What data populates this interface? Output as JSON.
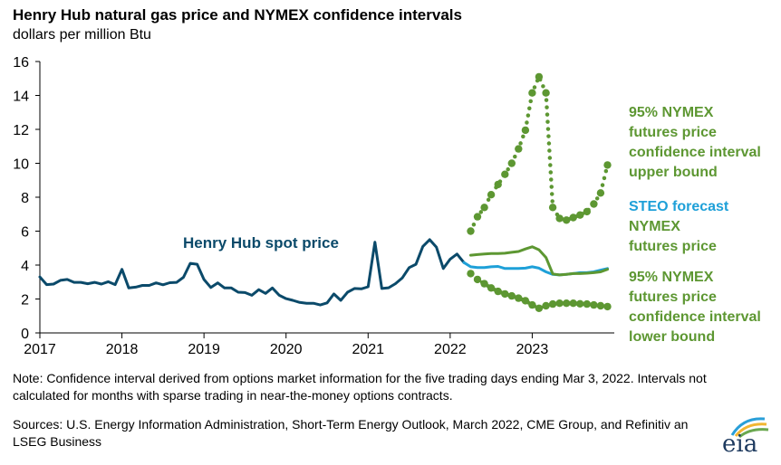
{
  "title": "Henry Hub natural gas price and NYMEX confidence intervals",
  "subtitle": "dollars per million Btu",
  "colors": {
    "spot": "#0b4a6a",
    "steo": "#1ea0d8",
    "futures": "#5d9732",
    "upper": "#5d9732",
    "lower": "#5d9732",
    "axis": "#000000"
  },
  "annotations": {
    "spot": "Henry Hub spot price",
    "upper": [
      "95% NYMEX",
      "futures price",
      "confidence interval",
      "upper bound"
    ],
    "steo": [
      "STEO forecast",
      "NYMEX",
      "futures price"
    ],
    "lower": [
      "95% NYMEX",
      "futures price",
      "confidence interval",
      "lower bound"
    ]
  },
  "note": "Note: Confidence interval derived from options market information for the five trading days ending Mar 3, 2022. Intervals not calculated for months with sparse trading in near-the-money options contracts.",
  "sources": "Sources: U.S. Energy Information Administration, Short-Term Energy Outlook, March 2022, CME Group, and Refinitiv an LSEG Business",
  "logo": "eia",
  "chart_data": {
    "type": "line",
    "title": "Henry Hub natural gas price and NYMEX confidence intervals",
    "ylabel": "dollars per million Btu",
    "xlabel": "",
    "xlim": [
      2017.0,
      2024.0
    ],
    "ylim": [
      0,
      16
    ],
    "yticks": [
      0,
      2,
      4,
      6,
      8,
      10,
      12,
      14,
      16
    ],
    "xticks": [
      2017,
      2018,
      2019,
      2020,
      2021,
      2022,
      2023
    ],
    "grid": false,
    "series": [
      {
        "name": "Henry Hub spot price",
        "style": "solid",
        "color": "#0b4a6a",
        "x": [
          2017.0,
          2017.083,
          2017.167,
          2017.25,
          2017.333,
          2017.417,
          2017.5,
          2017.583,
          2017.667,
          2017.75,
          2017.833,
          2017.917,
          2018.0,
          2018.083,
          2018.167,
          2018.25,
          2018.333,
          2018.417,
          2018.5,
          2018.583,
          2018.667,
          2018.75,
          2018.833,
          2018.917,
          2019.0,
          2019.083,
          2019.167,
          2019.25,
          2019.333,
          2019.417,
          2019.5,
          2019.583,
          2019.667,
          2019.75,
          2019.833,
          2019.917,
          2020.0,
          2020.083,
          2020.167,
          2020.25,
          2020.333,
          2020.417,
          2020.5,
          2020.583,
          2020.667,
          2020.75,
          2020.833,
          2020.917,
          2021.0,
          2021.083,
          2021.167,
          2021.25,
          2021.333,
          2021.417,
          2021.5,
          2021.583,
          2021.667,
          2021.75,
          2021.833,
          2021.917,
          2022.0,
          2022.083,
          2022.167
        ],
        "values": [
          3.3,
          2.85,
          2.88,
          3.1,
          3.15,
          2.98,
          2.98,
          2.9,
          2.98,
          2.88,
          3.02,
          2.85,
          3.75,
          2.65,
          2.7,
          2.8,
          2.8,
          2.95,
          2.84,
          2.96,
          2.98,
          3.28,
          4.1,
          4.05,
          3.15,
          2.68,
          2.95,
          2.65,
          2.65,
          2.4,
          2.38,
          2.22,
          2.55,
          2.33,
          2.65,
          2.22,
          2.02,
          1.92,
          1.8,
          1.75,
          1.75,
          1.65,
          1.77,
          2.3,
          1.92,
          2.4,
          2.62,
          2.6,
          2.72,
          5.35,
          2.62,
          2.66,
          2.9,
          3.25,
          3.85,
          4.05,
          5.1,
          5.5,
          5.05,
          3.8,
          4.35,
          4.65,
          4.15
        ]
      },
      {
        "name": "STEO forecast",
        "style": "solid",
        "color": "#1ea0d8",
        "x": [
          2022.167,
          2022.25,
          2022.333,
          2022.417,
          2022.5,
          2022.583,
          2022.667,
          2022.75,
          2022.833,
          2022.917,
          2023.0,
          2023.083,
          2023.167,
          2023.25,
          2023.333,
          2023.417,
          2023.5,
          2023.583,
          2023.667,
          2023.75,
          2023.833,
          2023.917
        ],
        "values": [
          4.15,
          3.9,
          3.85,
          3.85,
          3.9,
          3.92,
          3.8,
          3.8,
          3.8,
          3.82,
          3.9,
          3.82,
          3.6,
          3.45,
          3.42,
          3.45,
          3.5,
          3.55,
          3.55,
          3.6,
          3.7,
          3.8
        ]
      },
      {
        "name": "NYMEX futures price",
        "style": "solid",
        "color": "#5d9732",
        "x": [
          2022.25,
          2022.333,
          2022.417,
          2022.5,
          2022.583,
          2022.667,
          2022.75,
          2022.833,
          2022.917,
          2023.0,
          2023.083,
          2023.167,
          2023.25,
          2023.333,
          2023.417,
          2023.5,
          2023.583,
          2023.667,
          2023.75,
          2023.833,
          2023.917
        ],
        "values": [
          4.58,
          4.62,
          4.65,
          4.68,
          4.68,
          4.7,
          4.75,
          4.8,
          4.95,
          5.08,
          4.9,
          4.45,
          3.48,
          3.42,
          3.45,
          3.5,
          3.5,
          3.52,
          3.55,
          3.6,
          3.75
        ]
      },
      {
        "name": "95% NYMEX futures price confidence interval upper bound",
        "style": "dotted",
        "color": "#5d9732",
        "x": [
          2022.25,
          2022.333,
          2022.417,
          2022.5,
          2022.583,
          2022.667,
          2022.75,
          2022.833,
          2022.917,
          2023.0,
          2023.083,
          2023.167,
          2023.25,
          2023.333,
          2023.417,
          2023.5,
          2023.583,
          2023.667,
          2023.75,
          2023.833,
          2023.917
        ],
        "values": [
          6.0,
          6.85,
          7.4,
          8.15,
          8.75,
          9.35,
          10.0,
          10.85,
          11.95,
          14.15,
          15.1,
          14.15,
          7.4,
          6.75,
          6.65,
          6.8,
          6.95,
          7.15,
          7.6,
          8.25,
          9.9
        ]
      },
      {
        "name": "95% NYMEX futures price confidence interval lower bound",
        "style": "dotted",
        "color": "#5d9732",
        "x": [
          2022.25,
          2022.333,
          2022.417,
          2022.5,
          2022.583,
          2022.667,
          2022.75,
          2022.833,
          2022.917,
          2023.0,
          2023.083,
          2023.167,
          2023.25,
          2023.333,
          2023.417,
          2023.5,
          2023.583,
          2023.667,
          2023.75,
          2023.833,
          2023.917
        ],
        "values": [
          3.5,
          3.15,
          2.9,
          2.65,
          2.45,
          2.3,
          2.18,
          2.05,
          1.9,
          1.65,
          1.45,
          1.6,
          1.7,
          1.75,
          1.75,
          1.75,
          1.72,
          1.7,
          1.65,
          1.6,
          1.55
        ]
      }
    ]
  }
}
